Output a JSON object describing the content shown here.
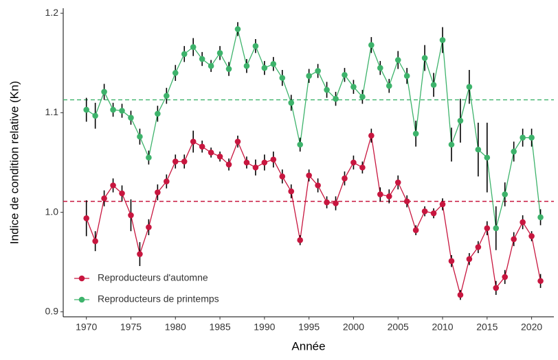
{
  "chart_data": {
    "type": "line",
    "x_label": "Année",
    "y_label": "Indice de condition relative (Kn)",
    "x": [
      1970,
      1971,
      1972,
      1973,
      1974,
      1975,
      1976,
      1977,
      1978,
      1979,
      1980,
      1981,
      1982,
      1983,
      1984,
      1985,
      1986,
      1987,
      1988,
      1989,
      1990,
      1991,
      1992,
      1993,
      1994,
      1995,
      1996,
      1997,
      1998,
      1999,
      2000,
      2001,
      2002,
      2003,
      2004,
      2005,
      2006,
      2007,
      2008,
      2009,
      2010,
      2011,
      2012,
      2013,
      2014,
      2015,
      2016,
      2017,
      2018,
      2019,
      2020,
      2021
    ],
    "series": [
      {
        "name": "Reproducteurs d'automne",
        "color": "#c8163f",
        "values": [
          0.994,
          0.971,
          1.014,
          1.027,
          1.019,
          0.997,
          0.958,
          0.985,
          1.02,
          1.031,
          1.051,
          1.051,
          1.071,
          1.066,
          1.06,
          1.056,
          1.048,
          1.071,
          1.05,
          1.045,
          1.05,
          1.053,
          1.036,
          1.021,
          0.972,
          1.037,
          1.027,
          1.01,
          1.009,
          1.034,
          1.05,
          1.045,
          1.077,
          1.018,
          1.016,
          1.03,
          1.011,
          0.982,
          1.001,
          0.999,
          1.008,
          0.951,
          0.917,
          0.953,
          0.965,
          0.984,
          0.924,
          0.935,
          0.973,
          0.99,
          0.976,
          0.931
        ],
        "errors": [
          0.018,
          0.01,
          0.008,
          0.007,
          0.008,
          0.016,
          0.012,
          0.008,
          0.008,
          0.007,
          0.007,
          0.007,
          0.011,
          0.006,
          0.005,
          0.005,
          0.006,
          0.006,
          0.006,
          0.008,
          0.008,
          0.008,
          0.007,
          0.007,
          0.005,
          0.006,
          0.007,
          0.006,
          0.007,
          0.007,
          0.007,
          0.006,
          0.007,
          0.007,
          0.007,
          0.007,
          0.006,
          0.005,
          0.005,
          0.005,
          0.006,
          0.006,
          0.005,
          0.006,
          0.006,
          0.007,
          0.007,
          0.007,
          0.007,
          0.007,
          0.005,
          0.007
        ]
      },
      {
        "name": "Reproducteurs de printemps",
        "color": "#3db36b",
        "values": [
          1.103,
          1.097,
          1.121,
          1.103,
          1.102,
          1.095,
          1.076,
          1.055,
          1.099,
          1.117,
          1.14,
          1.159,
          1.166,
          1.154,
          1.147,
          1.16,
          1.144,
          1.184,
          1.147,
          1.167,
          1.145,
          1.149,
          1.135,
          1.11,
          1.068,
          1.137,
          1.142,
          1.123,
          1.114,
          1.138,
          1.126,
          1.116,
          1.168,
          1.145,
          1.127,
          1.153,
          1.137,
          1.079,
          1.155,
          1.128,
          1.173,
          1.068,
          1.092,
          1.126,
          1.063,
          1.055,
          0.984,
          1.018,
          1.061,
          1.075,
          1.075,
          0.995
        ],
        "errors": [
          0.012,
          0.013,
          0.008,
          0.007,
          0.007,
          0.007,
          0.008,
          0.007,
          0.008,
          0.008,
          0.008,
          0.008,
          0.009,
          0.007,
          0.006,
          0.007,
          0.007,
          0.007,
          0.007,
          0.007,
          0.007,
          0.007,
          0.008,
          0.008,
          0.007,
          0.007,
          0.007,
          0.008,
          0.007,
          0.007,
          0.007,
          0.007,
          0.008,
          0.007,
          0.007,
          0.009,
          0.008,
          0.013,
          0.013,
          0.012,
          0.013,
          0.017,
          0.022,
          0.017,
          0.027,
          0.035,
          0.022,
          0.012,
          0.01,
          0.009,
          0.009,
          0.008
        ]
      }
    ],
    "reference_lines": [
      {
        "value": 1.011,
        "color": "#c8163f"
      },
      {
        "value": 1.113,
        "color": "#3db36b"
      }
    ],
    "xlim": [
      1967.4,
      2022.5
    ],
    "ylim": [
      0.895,
      1.205
    ],
    "xticks": [
      1970,
      1975,
      1980,
      1985,
      1990,
      1995,
      2000,
      2005,
      2010,
      2015,
      2020
    ],
    "yticks": [
      {
        "value": 0.9,
        "label": "0.9"
      },
      {
        "value": 1.0,
        "label": "1.0"
      },
      {
        "value": 1.1,
        "label": "1.1"
      },
      {
        "value": 1.2,
        "label": "1.2"
      }
    ],
    "legend": "bottom-left",
    "grid": false
  }
}
